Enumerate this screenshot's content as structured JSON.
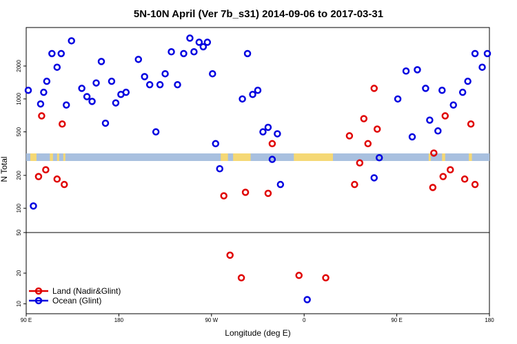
{
  "chart_data": {
    "type": "scatter",
    "title": "5N-10N April (Ver 7b_s31)   2014-09-06 to 2017-03-31",
    "xlabel": "Longitude (deg E)",
    "ylabel": "N Total",
    "x_range_deg": [
      90,
      450
    ],
    "x_ticks": [
      {
        "value": 90,
        "label": "90 E"
      },
      {
        "value": 180,
        "label": "180"
      },
      {
        "value": 270,
        "label": "90 W"
      },
      {
        "value": 360,
        "label": "0"
      },
      {
        "value": 450,
        "label": "90 E"
      },
      {
        "value": 540,
        "label": "180"
      }
    ],
    "x_range_plot": [
      90,
      540
    ],
    "y_upper_ticks": [
      {
        "value": 100,
        "label": "100"
      },
      {
        "value": 200,
        "label": "200"
      },
      {
        "value": 500,
        "label": "500"
      },
      {
        "value": 1000,
        "label": "1000"
      },
      {
        "value": 2000,
        "label": "2000"
      }
    ],
    "y_upper_range": [
      60,
      4500
    ],
    "y_lower_ticks": [
      {
        "value": 10,
        "label": "10"
      },
      {
        "value": 20,
        "label": "20"
      },
      {
        "value": 50,
        "label": "50"
      }
    ],
    "y_lower_range": [
      8,
      50
    ],
    "map_band_note": "land/ocean strip along 5N-10N",
    "colors": {
      "land": "#e00000",
      "ocean": "#0000e0",
      "band": "#a8c0df",
      "land_band": "#f5d875"
    },
    "legend": {
      "placement": "bottom-left",
      "entries": [
        {
          "label": "Land (Nadir&Glint)",
          "series": "land"
        },
        {
          "label": "Ocean (Glint)",
          "series": "ocean"
        }
      ]
    },
    "series": [
      {
        "name": "Ocean (Glint)",
        "key": "ocean",
        "points": [
          [
            92,
            1200
          ],
          [
            97,
            105
          ],
          [
            104,
            900
          ],
          [
            107,
            1150
          ],
          [
            110,
            1450
          ],
          [
            115,
            2600
          ],
          [
            120,
            1950
          ],
          [
            124,
            2600
          ],
          [
            129,
            880
          ],
          [
            134,
            3400
          ],
          [
            144,
            1250
          ],
          [
            149,
            1050
          ],
          [
            154,
            950
          ],
          [
            158,
            1400
          ],
          [
            163,
            2200
          ],
          [
            167,
            600
          ],
          [
            173,
            1450
          ],
          [
            177,
            920
          ],
          [
            182,
            1100
          ],
          [
            187,
            1150
          ],
          [
            199,
            2300
          ],
          [
            205,
            1600
          ],
          [
            210,
            1350
          ],
          [
            216,
            500
          ],
          [
            220,
            1350
          ],
          [
            225,
            1700
          ],
          [
            231,
            2700
          ],
          [
            237,
            1350
          ],
          [
            243,
            2600
          ],
          [
            249,
            3600
          ],
          [
            253,
            2700
          ],
          [
            258,
            3300
          ],
          [
            262,
            3000
          ],
          [
            266,
            3300
          ],
          [
            271,
            1700
          ],
          [
            274,
            390
          ],
          [
            278,
            230
          ],
          [
            300,
            1000
          ],
          [
            305,
            2600
          ],
          [
            310,
            1100
          ],
          [
            315,
            1200
          ],
          [
            320,
            500
          ],
          [
            325,
            550
          ],
          [
            329,
            280
          ],
          [
            334,
            480
          ],
          [
            337,
            165
          ],
          [
            363,
            11
          ],
          [
            428,
            190
          ],
          [
            433,
            290
          ],
          [
            451,
            1000
          ],
          [
            459,
            1800
          ],
          [
            465,
            450
          ],
          [
            470,
            1850
          ],
          [
            478,
            1250
          ],
          [
            482,
            640
          ],
          [
            490,
            510
          ],
          [
            494,
            1200
          ],
          [
            505,
            880
          ],
          [
            514,
            1150
          ],
          [
            519,
            1450
          ],
          [
            526,
            2600
          ],
          [
            533,
            1950
          ],
          [
            538,
            2600
          ]
        ]
      },
      {
        "name": "Land (Nadir&Glint)",
        "key": "land",
        "points": [
          [
            102,
            195
          ],
          [
            105,
            700
          ],
          [
            109,
            225
          ],
          [
            120,
            185
          ],
          [
            125,
            590
          ],
          [
            127,
            165
          ],
          [
            282,
            130
          ],
          [
            288,
            30
          ],
          [
            303,
            140
          ],
          [
            299,
            18
          ],
          [
            325,
            137
          ],
          [
            329,
            390
          ],
          [
            355,
            19
          ],
          [
            381,
            18
          ],
          [
            404,
            460
          ],
          [
            409,
            165
          ],
          [
            414,
            260
          ],
          [
            418,
            660
          ],
          [
            422,
            390
          ],
          [
            428,
            1250
          ],
          [
            431,
            530
          ],
          [
            485,
            155
          ],
          [
            486,
            320
          ],
          [
            495,
            195
          ],
          [
            497,
            700
          ],
          [
            502,
            225
          ],
          [
            516,
            185
          ],
          [
            522,
            590
          ],
          [
            526,
            165
          ]
        ]
      }
    ]
  }
}
